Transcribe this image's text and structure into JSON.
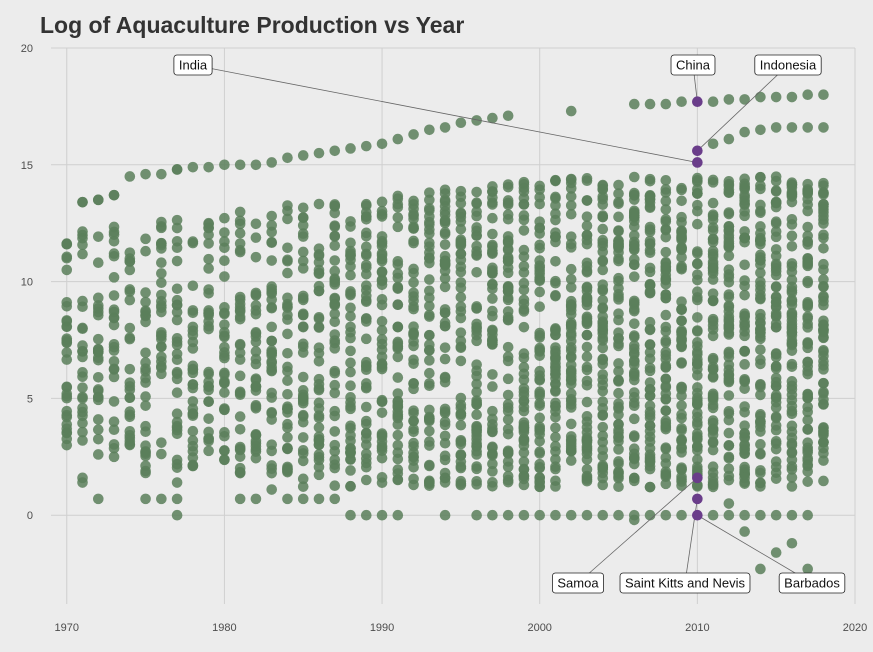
{
  "colors": {
    "background": "#ececec",
    "grid": "#cfcfcf",
    "point": "#5b7f5b",
    "highlight": "#6a3d8a",
    "text": "#333333"
  },
  "chart_data": {
    "type": "scatter",
    "title": "Log of Aquaculture Production vs Year",
    "xlabel": "",
    "ylabel": "",
    "xlim": [
      1969,
      2020
    ],
    "ylim": [
      -3.8,
      20
    ],
    "x_ticks": [
      1970,
      1980,
      1990,
      2000,
      2010,
      2020
    ],
    "y_ticks": [
      0,
      5,
      10,
      15,
      20
    ],
    "grid": true,
    "legend": "none",
    "x_range": [
      1970,
      2018
    ],
    "points": [
      [
        1970,
        11.6
      ],
      [
        1970,
        10.5
      ],
      [
        1970,
        8.3
      ],
      [
        1970,
        5.5
      ],
      [
        1970,
        4.2
      ],
      [
        1970,
        3.0
      ],
      [
        1970,
        3.7
      ],
      [
        1970,
        5.2
      ],
      [
        1970,
        11.0
      ],
      [
        1971,
        13.4
      ],
      [
        1971,
        1.6
      ],
      [
        1971,
        1.4
      ],
      [
        1971,
        3.2
      ],
      [
        1972,
        13.5
      ],
      [
        1972,
        0.7
      ],
      [
        1972,
        2.6
      ],
      [
        1973,
        13.7
      ],
      [
        1973,
        2.5
      ],
      [
        1975,
        0.7
      ],
      [
        1976,
        0.7
      ],
      [
        1977,
        0.0
      ],
      [
        1977,
        0.7
      ],
      [
        1977,
        1.4
      ],
      [
        1977,
        14.8
      ],
      [
        1981,
        0.7
      ],
      [
        1982,
        0.7
      ],
      [
        1983,
        1.1
      ],
      [
        1984,
        0.7
      ],
      [
        1985,
        0.7
      ],
      [
        1986,
        0.7
      ],
      [
        1987,
        0.7
      ],
      [
        1988,
        0.0
      ],
      [
        1989,
        0.0
      ],
      [
        1990,
        0.0
      ],
      [
        1991,
        0.0
      ],
      [
        1994,
        0.0
      ],
      [
        1996,
        0.0
      ],
      [
        1997,
        0.0
      ],
      [
        1998,
        0.0
      ],
      [
        1999,
        0.0
      ],
      [
        2000,
        0.0
      ],
      [
        2001,
        0.0
      ],
      [
        2002,
        0.0
      ],
      [
        2003,
        0.0
      ],
      [
        2004,
        0.0
      ],
      [
        2005,
        0.0
      ],
      [
        2006,
        0.0
      ],
      [
        2006,
        -0.2
      ],
      [
        2007,
        0.0
      ],
      [
        2008,
        0.0
      ],
      [
        2009,
        0.0
      ],
      [
        2011,
        0.0
      ],
      [
        2012,
        0.0
      ],
      [
        2013,
        0.0
      ],
      [
        2014,
        0.0
      ],
      [
        2015,
        0.0
      ],
      [
        2016,
        0.0
      ],
      [
        2017,
        0.0
      ],
      [
        2012,
        0.5
      ],
      [
        2013,
        -0.7
      ],
      [
        2014,
        -2.3
      ],
      [
        2015,
        -1.6
      ],
      [
        2016,
        -1.2
      ],
      [
        2017,
        -2.3
      ],
      [
        2002,
        17.3
      ],
      [
        2006,
        17.6
      ],
      [
        2007,
        17.6
      ],
      [
        2008,
        17.6
      ],
      [
        2009,
        17.7
      ],
      [
        2011,
        17.7
      ],
      [
        2012,
        17.8
      ],
      [
        2013,
        17.8
      ],
      [
        2014,
        17.9
      ],
      [
        2015,
        17.9
      ],
      [
        2016,
        17.9
      ],
      [
        2017,
        18.0
      ],
      [
        2018,
        18.0
      ],
      [
        2011,
        15.9
      ],
      [
        2012,
        16.1
      ],
      [
        2013,
        16.4
      ],
      [
        2014,
        16.5
      ],
      [
        2015,
        16.6
      ],
      [
        2016,
        16.6
      ],
      [
        2017,
        16.6
      ],
      [
        2018,
        16.6
      ]
    ],
    "upper_band": {
      "years": [
        1970,
        1971,
        1972,
        1973,
        1974,
        1975,
        1976,
        1977,
        1978,
        1979,
        1980,
        1981,
        1982,
        1983,
        1984,
        1985,
        1986,
        1987,
        1988,
        1989,
        1990,
        1991,
        1992,
        1993,
        1994,
        1995,
        1996,
        1997,
        1998
      ],
      "values": [
        11.6,
        13.4,
        13.5,
        13.7,
        14.5,
        14.6,
        14.6,
        14.8,
        14.9,
        14.9,
        15.0,
        15.0,
        15.0,
        15.1,
        15.3,
        15.4,
        15.5,
        15.6,
        15.7,
        15.8,
        15.9,
        16.1,
        16.3,
        16.5,
        16.6,
        16.8,
        16.9,
        17.0,
        17.1
      ]
    },
    "highlight_points": [
      {
        "x": 2010,
        "y": 17.7
      },
      {
        "x": 2010,
        "y": 15.6
      },
      {
        "x": 2010,
        "y": 15.1
      },
      {
        "x": 2010,
        "y": 1.6
      },
      {
        "x": 2010,
        "y": 0.7
      },
      {
        "x": 2010,
        "y": 0.0
      }
    ],
    "annotations": [
      {
        "label": "India",
        "x": 2010,
        "y": 15.1
      },
      {
        "label": "China",
        "x": 2010,
        "y": 17.7
      },
      {
        "label": "Indonesia",
        "x": 2010,
        "y": 15.6
      },
      {
        "label": "Samoa",
        "x": 2010,
        "y": 1.6
      },
      {
        "label": "Saint Kitts and Nevis",
        "x": 2010,
        "y": 0.7
      },
      {
        "label": "Barbados",
        "x": 2010,
        "y": 0.0
      }
    ]
  }
}
